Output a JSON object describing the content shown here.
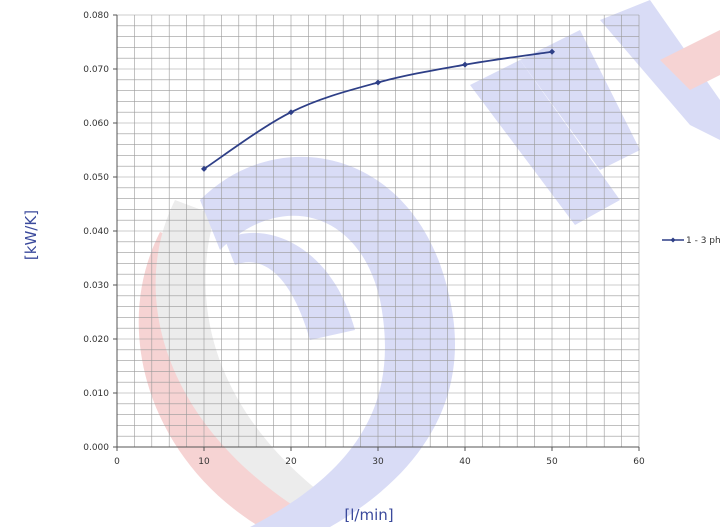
{
  "chart_data": {
    "type": "line",
    "title": "",
    "xlabel": "[l/min]",
    "ylabel": "[kW/K]",
    "xlim": [
      0,
      60
    ],
    "ylim": [
      0,
      0.08
    ],
    "x_ticks": [
      "0",
      "10",
      "20",
      "30",
      "40",
      "50",
      "60"
    ],
    "y_ticks": [
      "0.000",
      "0.010",
      "0.020",
      "0.030",
      "0.040",
      "0.050",
      "0.060",
      "0.070",
      "0.080"
    ],
    "grid": true,
    "legend_position": "right",
    "series": [
      {
        "name": "1 - 3 ph",
        "color": "#2e3f87",
        "marker": "diamond",
        "smooth": true,
        "x": [
          10,
          20,
          30,
          40,
          50
        ],
        "y": [
          0.0515,
          0.062,
          0.0675,
          0.0708,
          0.0732
        ]
      }
    ]
  },
  "watermark": {
    "colors": {
      "blue": "#d9dcf6",
      "red": "#f6d3d3",
      "gray": "#ececec"
    }
  }
}
